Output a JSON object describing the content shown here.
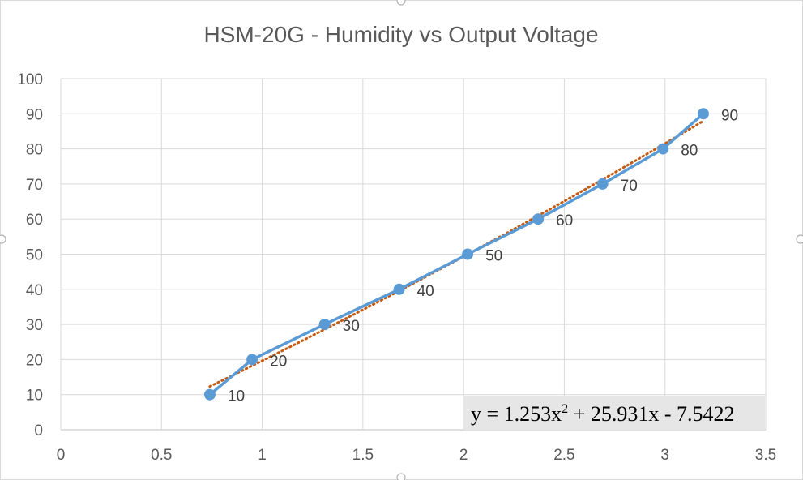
{
  "chart_data": {
    "type": "scatter",
    "title": "HSM-20G - Humidity vs Output Voltage",
    "xlabel": "",
    "ylabel": "",
    "xlim": [
      0,
      3.5
    ],
    "ylim": [
      0,
      100
    ],
    "x_ticks": [
      "0",
      "0.5",
      "1",
      "1.5",
      "2",
      "2.5",
      "3",
      "3.5"
    ],
    "y_ticks": [
      "0",
      "10",
      "20",
      "30",
      "40",
      "50",
      "60",
      "70",
      "80",
      "90",
      "100"
    ],
    "grid": true,
    "legend": "none",
    "series": [
      {
        "x": [
          0.74,
          0.95,
          1.31,
          1.68,
          2.02,
          2.37,
          2.69,
          2.99,
          3.19
        ],
        "y": [
          10,
          20,
          30,
          40,
          50,
          60,
          70,
          80,
          90
        ],
        "data_labels": [
          "10",
          "20",
          "30",
          "40",
          "50",
          "60",
          "70",
          "80",
          "90"
        ],
        "color": "#5b9bd5",
        "line": "solid",
        "markers": "circle"
      }
    ],
    "trendline": {
      "kind": "polynomial-2",
      "a": 1.253,
      "b": 25.931,
      "c": -7.5422,
      "color": "#c55a11",
      "style": "dotted",
      "equation_parts": [
        "y = 1.253x",
        "2",
        " + 25.931x - 7.5422"
      ]
    }
  }
}
